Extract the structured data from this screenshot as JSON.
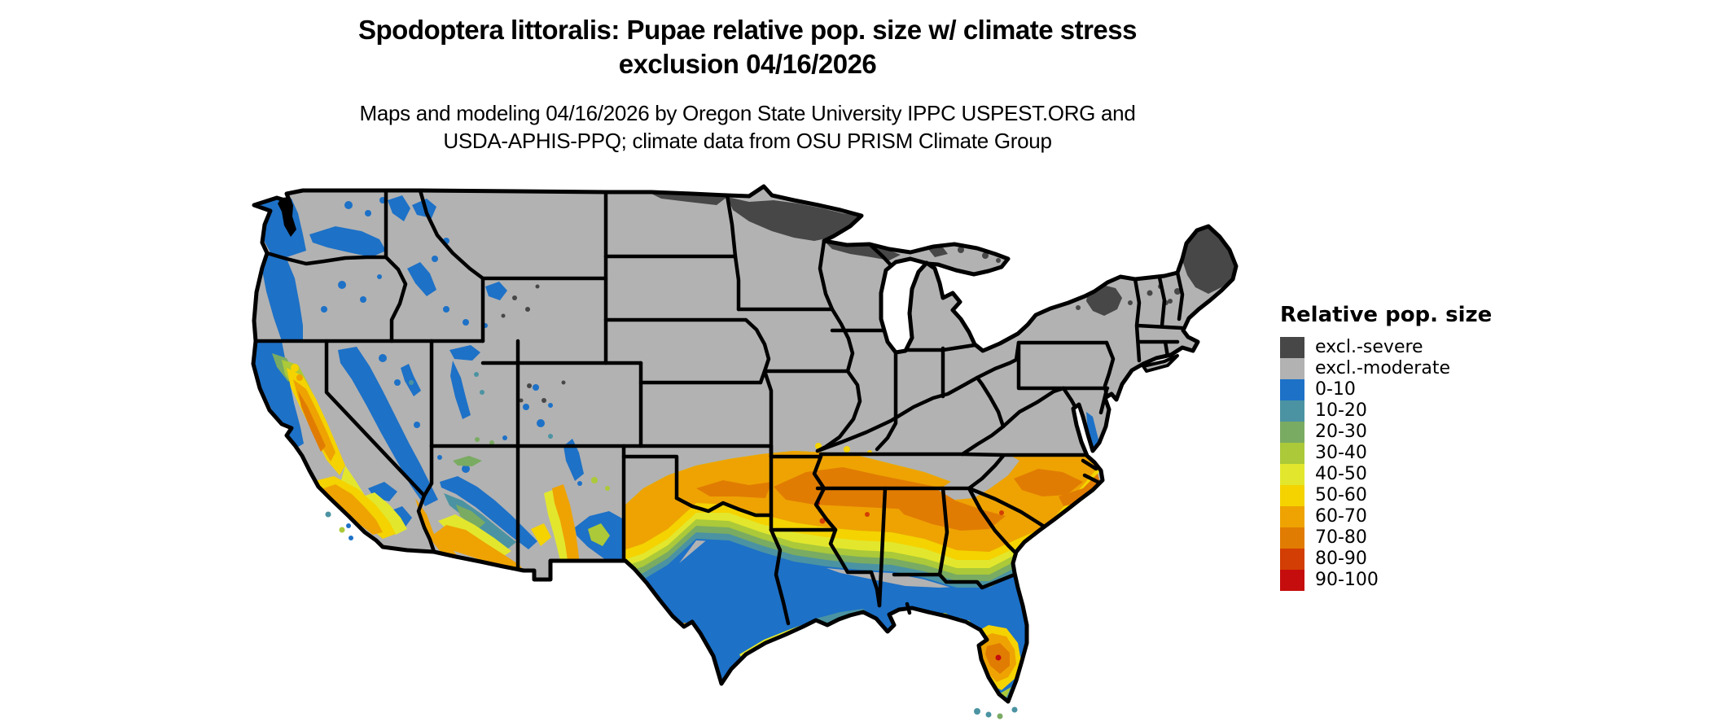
{
  "title": {
    "line1": "Spodoptera littoralis: Pupae relative pop. size w/ climate stress",
    "line2": "exclusion 04/16/2026"
  },
  "subtitle": {
    "line1": "Maps and modeling 04/16/2026 by Oregon State University IPPC USPEST.ORG and",
    "line2": "USDA-APHIS-PPQ; climate data from OSU PRISM Climate Group"
  },
  "legend": {
    "title": "Relative pop. size",
    "items": [
      {
        "label": "excl.-severe",
        "color": "#474747"
      },
      {
        "label": "excl.-moderate",
        "color": "#b2b2b2"
      },
      {
        "label": "0-10",
        "color": "#1d71c7"
      },
      {
        "label": "10-20",
        "color": "#4b93a2"
      },
      {
        "label": "20-30",
        "color": "#7aab62"
      },
      {
        "label": "30-40",
        "color": "#abc939"
      },
      {
        "label": "40-50",
        "color": "#e2e72d"
      },
      {
        "label": "50-60",
        "color": "#f4d300"
      },
      {
        "label": "60-70",
        "color": "#eea302"
      },
      {
        "label": "70-80",
        "color": "#e17c02"
      },
      {
        "label": "80-90",
        "color": "#d23e03"
      },
      {
        "label": "90-100",
        "color": "#c60d0d"
      }
    ]
  },
  "chart_data": {
    "type": "choropleth_map",
    "region": "contiguous United States with state borders",
    "legend_title": "Relative pop. size",
    "categories": [
      "excl.-severe",
      "excl.-moderate",
      "0-10",
      "10-20",
      "20-30",
      "30-40",
      "40-50",
      "50-60",
      "60-70",
      "70-80",
      "80-90",
      "90-100"
    ],
    "colors": [
      "#474747",
      "#b2b2b2",
      "#1d71c7",
      "#4b93a2",
      "#7aab62",
      "#abc939",
      "#e2e72d",
      "#f4d300",
      "#eea302",
      "#e17c02",
      "#d23e03",
      "#c60d0d"
    ],
    "notes_visible_pattern": "Most northern/central US excl.-moderate gray; excl.-severe dark gray in northern Minnesota, northern Wisconsin, upper Michigan, northern Maine and Adirondacks; 0-10 blue along Pacific coast, Sierra Nevada, central/south Texas, Gulf coast, northern Florida; 60-80 orange band across southern plains, Tennessee, Carolinas, California central valley, southern Arizona, central Florida"
  }
}
